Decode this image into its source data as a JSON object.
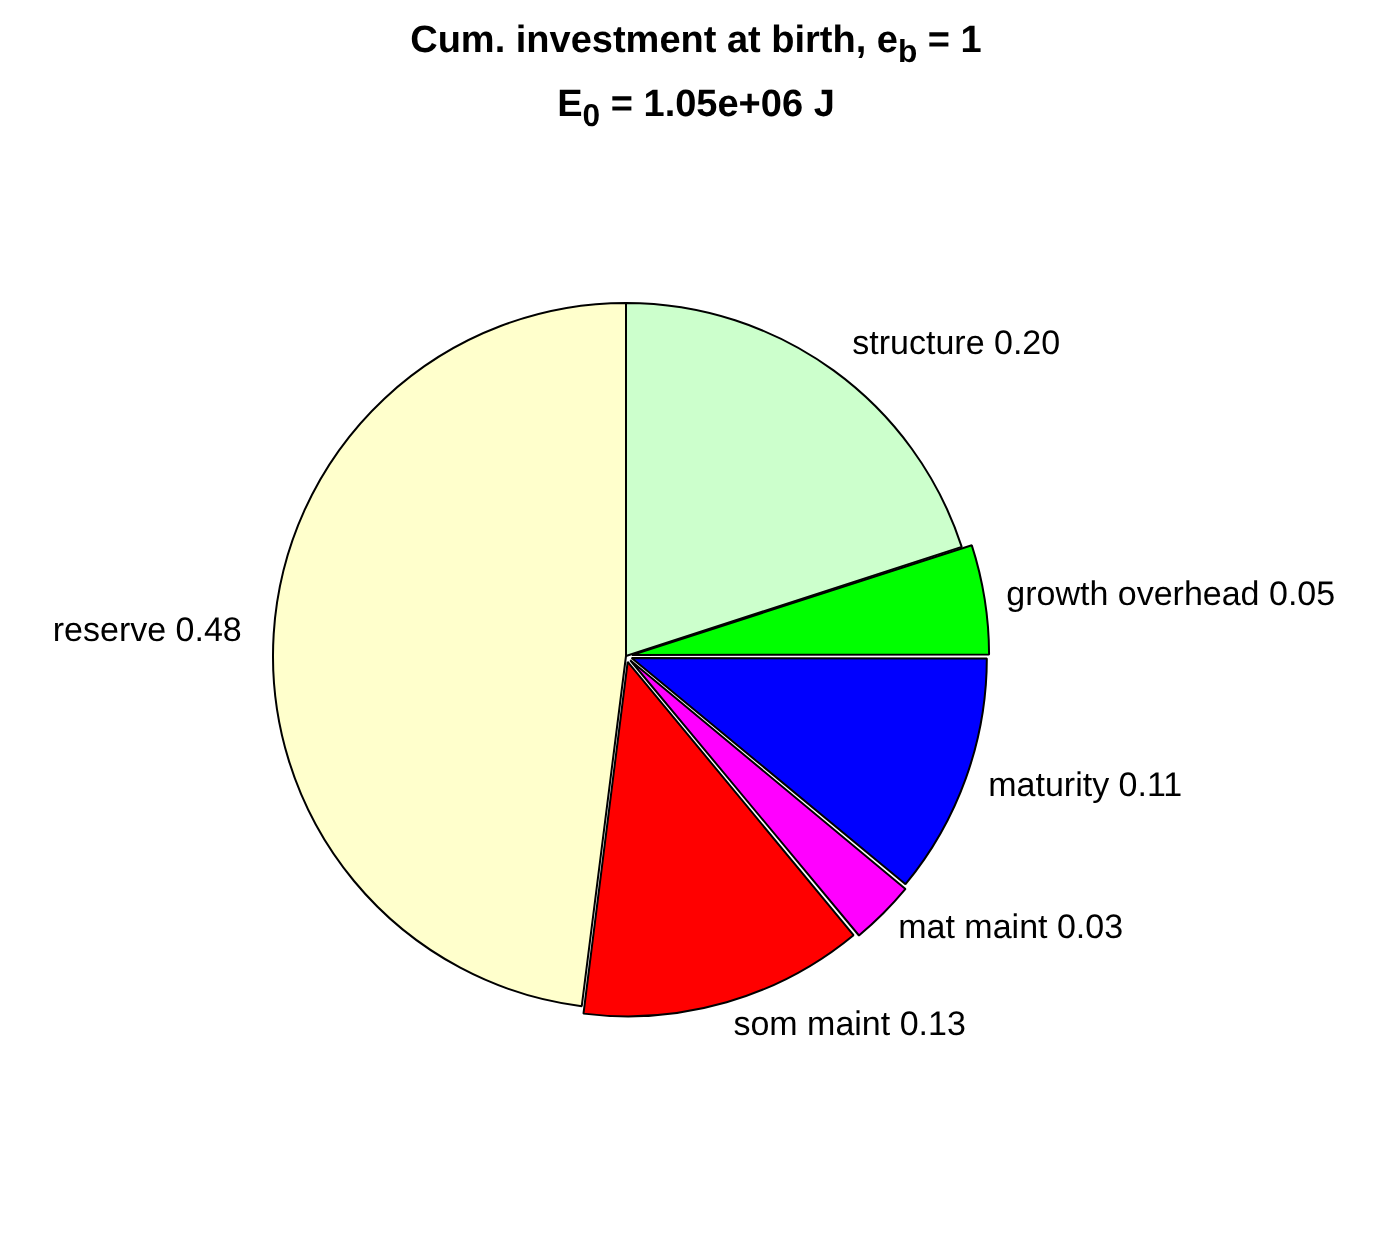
{
  "chart_data": {
    "type": "pie",
    "title": "Cum. investment at birth, e$_{b}$ = 1",
    "subtitle": "E$_{0}$ = 1.05e+06 J",
    "categories": [
      "structure",
      "growth overhead",
      "maturity",
      "mat maint",
      "som maint",
      "reserve"
    ],
    "values": [
      0.2,
      0.05,
      0.11,
      0.03,
      0.13,
      0.48
    ],
    "value_labels": [
      "0.20",
      "0.05",
      "0.11",
      "0.03",
      "0.13",
      "0.48"
    ],
    "colors": [
      "#ccffcc",
      "#00ff00",
      "#0000ff",
      "#ff00ff",
      "#ff0000",
      "#ffffcc"
    ]
  }
}
